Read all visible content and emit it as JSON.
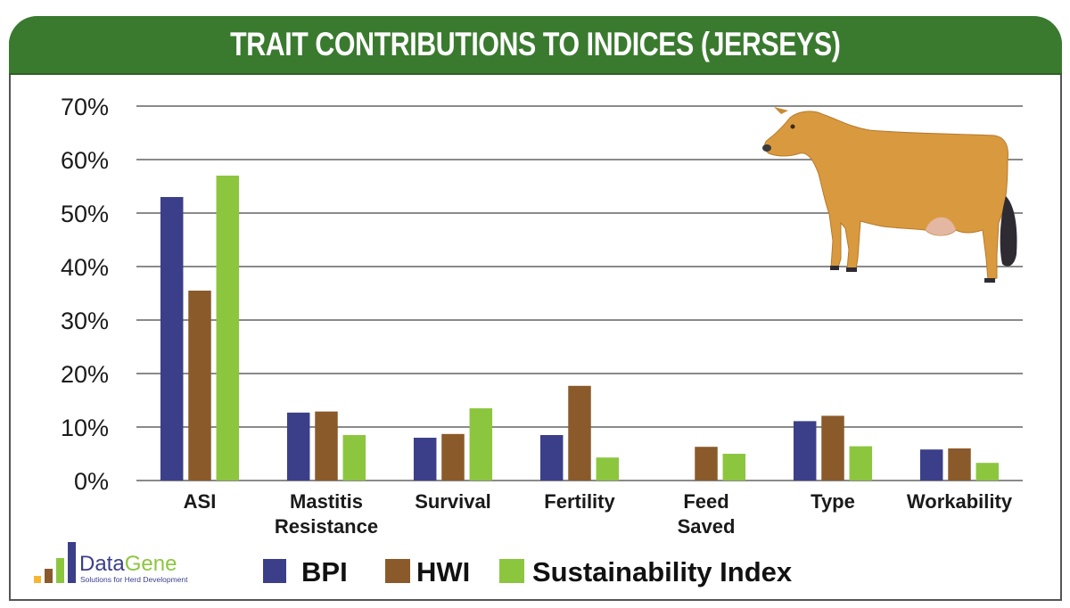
{
  "chart_data": {
    "type": "bar",
    "title": "TRAIT CONTRIBUTIONS TO INDICES (JERSEYS)",
    "xlabel": "",
    "ylabel": "",
    "ylim": [
      0,
      70
    ],
    "yticks": [
      0,
      10,
      20,
      30,
      40,
      50,
      60,
      70
    ],
    "ytick_labels": [
      "0%",
      "10%",
      "20%",
      "30%",
      "40%",
      "50%",
      "60%",
      "70%"
    ],
    "grid": true,
    "legend_position": "bottom",
    "categories": [
      [
        "ASI"
      ],
      [
        "Mastitis",
        "Resistance"
      ],
      [
        "Survival"
      ],
      [
        "Fertility"
      ],
      [
        "Feed",
        "Saved"
      ],
      [
        "Type"
      ],
      [
        "Workability"
      ]
    ],
    "series": [
      {
        "name": "BPI",
        "color": "#3b3f8a",
        "values": [
          53,
          12.7,
          8.0,
          8.5,
          0,
          11.1,
          5.8
        ]
      },
      {
        "name": "HWI",
        "color": "#8b5a2b",
        "values": [
          35.5,
          12.9,
          8.7,
          17.7,
          6.3,
          12.1,
          6.0
        ]
      },
      {
        "name": "Sustainability Index",
        "color": "#8cc63f",
        "values": [
          57,
          8.5,
          13.5,
          4.3,
          5.0,
          6.4,
          3.3
        ]
      }
    ]
  },
  "header": {
    "title": "TRAIT CONTRIBUTIONS TO INDICES (JERSEYS)",
    "color": "#3a7a2f"
  },
  "logo": {
    "name_part1": "Data",
    "name_part2": "Gene",
    "tagline": "Solutions for Herd Development"
  },
  "illustration": {
    "icon": "jersey-cow-icon"
  }
}
